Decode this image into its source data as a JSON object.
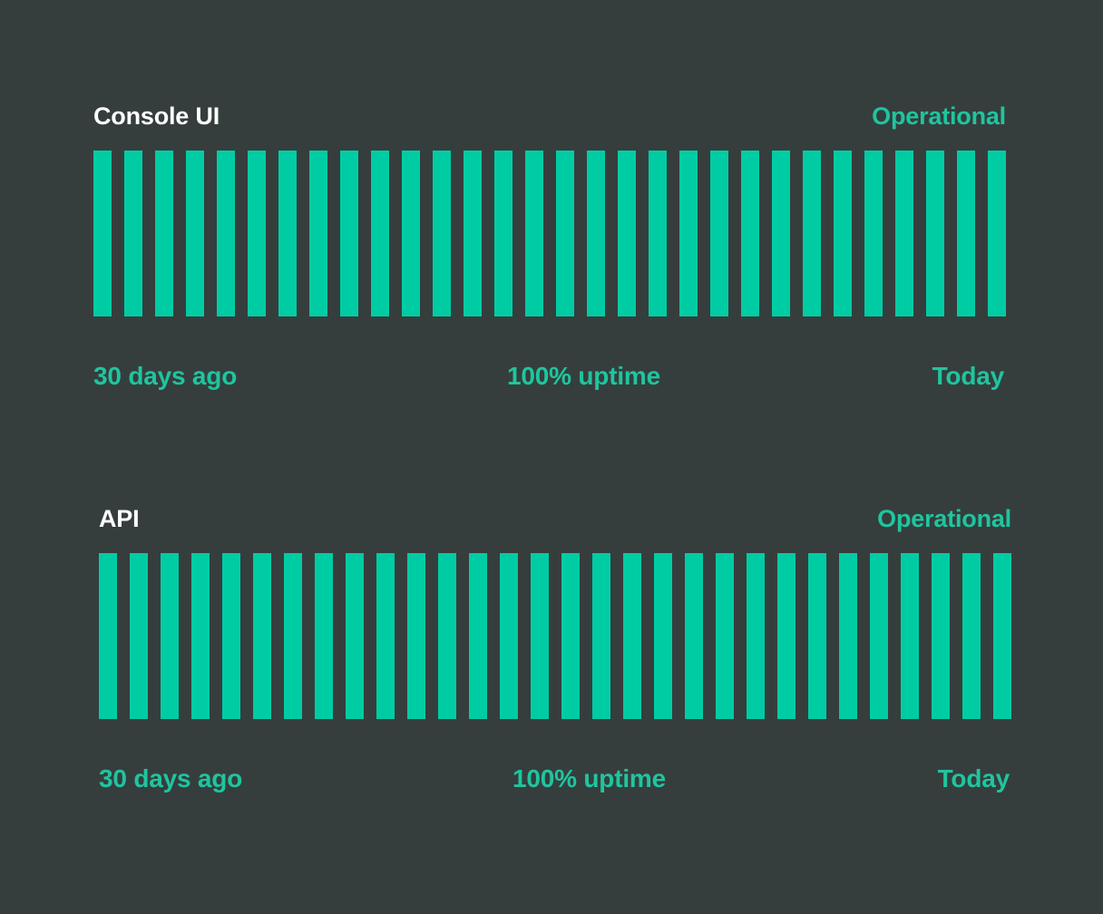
{
  "colors": {
    "background": "#353e3d",
    "accent": "#00cca4",
    "accent_text": "#1fc59f",
    "title": "#ffffff"
  },
  "services": [
    {
      "name": "Console UI",
      "status": "Operational",
      "days": 30,
      "daily_status": [
        "up",
        "up",
        "up",
        "up",
        "up",
        "up",
        "up",
        "up",
        "up",
        "up",
        "up",
        "up",
        "up",
        "up",
        "up",
        "up",
        "up",
        "up",
        "up",
        "up",
        "up",
        "up",
        "up",
        "up",
        "up",
        "up",
        "up",
        "up",
        "up",
        "up"
      ],
      "range_start_label": "30 days ago",
      "uptime_label": "100% uptime",
      "range_end_label": "Today"
    },
    {
      "name": "API",
      "status": "Operational",
      "days": 30,
      "daily_status": [
        "up",
        "up",
        "up",
        "up",
        "up",
        "up",
        "up",
        "up",
        "up",
        "up",
        "up",
        "up",
        "up",
        "up",
        "up",
        "up",
        "up",
        "up",
        "up",
        "up",
        "up",
        "up",
        "up",
        "up",
        "up",
        "up",
        "up",
        "up",
        "up",
        "up"
      ],
      "range_start_label": "30 days ago",
      "uptime_label": "100% uptime",
      "range_end_label": "Today"
    }
  ]
}
